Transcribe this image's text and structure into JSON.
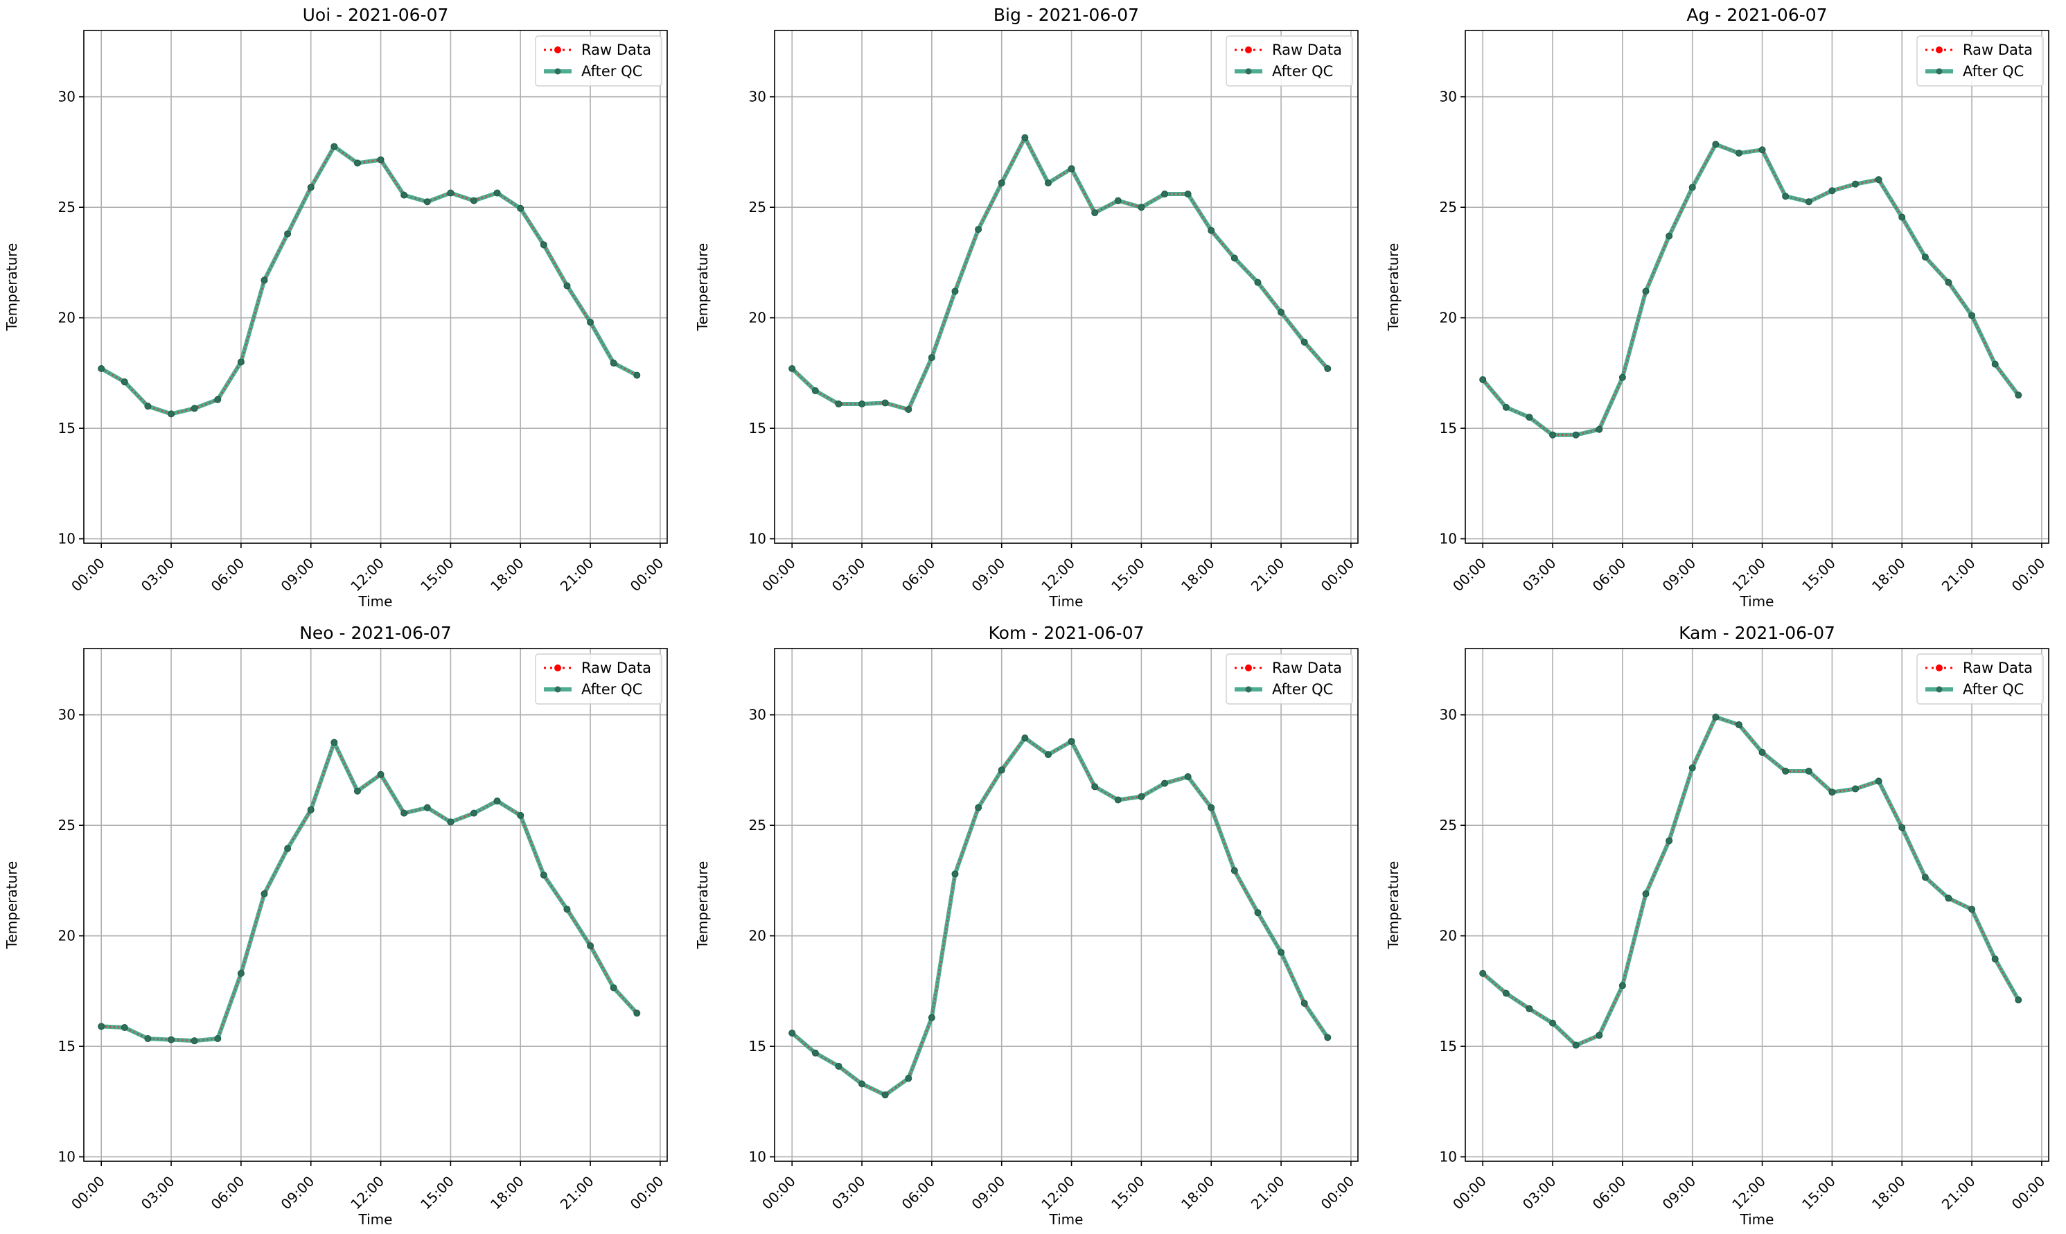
{
  "chart_data": [
    {
      "type": "line",
      "title": "Uoi - 2021-06-07",
      "xlabel": "Time",
      "ylabel": "Temperature",
      "ylim": [
        9.8,
        33.0
      ],
      "yticks": [
        10,
        15,
        20,
        25,
        30
      ],
      "xticks": [
        "00:00",
        "03:00",
        "06:00",
        "09:00",
        "12:00",
        "15:00",
        "18:00",
        "21:00",
        "00:00"
      ],
      "grid": true,
      "legend": "top-right",
      "x": [
        "00:00",
        "01:00",
        "02:00",
        "03:00",
        "04:00",
        "05:00",
        "06:00",
        "07:00",
        "08:00",
        "09:00",
        "10:00",
        "11:00",
        "12:00",
        "13:00",
        "14:00",
        "15:00",
        "16:00",
        "17:00",
        "18:00",
        "19:00",
        "20:00",
        "21:00",
        "22:00",
        "23:00"
      ],
      "series": [
        {
          "name": "Raw Data",
          "color": "#ff0000",
          "values": [
            17.7,
            17.1,
            16.0,
            15.65,
            15.9,
            16.3,
            18.0,
            21.7,
            23.8,
            25.9,
            27.75,
            27.0,
            27.15,
            25.55,
            25.25,
            25.65,
            25.3,
            25.65,
            24.95,
            23.3,
            21.45,
            19.8,
            17.95,
            17.4
          ]
        },
        {
          "name": "After QC",
          "color": "#2f9e7e",
          "values": [
            17.7,
            17.1,
            16.0,
            15.65,
            15.9,
            16.3,
            18.0,
            21.7,
            23.8,
            25.9,
            27.75,
            27.0,
            27.15,
            25.55,
            25.25,
            25.65,
            25.3,
            25.65,
            24.95,
            23.3,
            21.45,
            19.8,
            17.95,
            17.4
          ]
        }
      ]
    },
    {
      "type": "line",
      "title": "Big - 2021-06-07",
      "xlabel": "Time",
      "ylabel": "Temperature",
      "ylim": [
        9.8,
        33.0
      ],
      "yticks": [
        10,
        15,
        20,
        25,
        30
      ],
      "xticks": [
        "00:00",
        "03:00",
        "06:00",
        "09:00",
        "12:00",
        "15:00",
        "18:00",
        "21:00",
        "00:00"
      ],
      "grid": true,
      "legend": "top-right",
      "x": [
        "00:00",
        "01:00",
        "02:00",
        "03:00",
        "04:00",
        "05:00",
        "06:00",
        "07:00",
        "08:00",
        "09:00",
        "10:00",
        "11:00",
        "12:00",
        "13:00",
        "14:00",
        "15:00",
        "16:00",
        "17:00",
        "18:00",
        "19:00",
        "20:00",
        "21:00",
        "22:00",
        "23:00"
      ],
      "series": [
        {
          "name": "Raw Data",
          "color": "#ff0000",
          "values": [
            17.7,
            16.7,
            16.1,
            16.1,
            16.15,
            15.85,
            18.2,
            21.2,
            24.0,
            26.1,
            28.15,
            26.1,
            26.75,
            24.75,
            25.3,
            25.0,
            25.6,
            25.6,
            23.95,
            22.7,
            21.6,
            20.25,
            18.9,
            17.7
          ]
        },
        {
          "name": "After QC",
          "color": "#2f9e7e",
          "values": [
            17.7,
            16.7,
            16.1,
            16.1,
            16.15,
            15.85,
            18.2,
            21.2,
            24.0,
            26.1,
            28.15,
            26.1,
            26.75,
            24.75,
            25.3,
            25.0,
            25.6,
            25.6,
            23.95,
            22.7,
            21.6,
            20.25,
            18.9,
            17.7
          ]
        }
      ]
    },
    {
      "type": "line",
      "title": "Ag - 2021-06-07",
      "xlabel": "Time",
      "ylabel": "Temperature",
      "ylim": [
        9.8,
        33.0
      ],
      "yticks": [
        10,
        15,
        20,
        25,
        30
      ],
      "xticks": [
        "00:00",
        "03:00",
        "06:00",
        "09:00",
        "12:00",
        "15:00",
        "18:00",
        "21:00",
        "00:00"
      ],
      "grid": true,
      "legend": "top-right",
      "x": [
        "00:00",
        "01:00",
        "02:00",
        "03:00",
        "04:00",
        "05:00",
        "06:00",
        "07:00",
        "08:00",
        "09:00",
        "10:00",
        "11:00",
        "12:00",
        "13:00",
        "14:00",
        "15:00",
        "16:00",
        "17:00",
        "18:00",
        "19:00",
        "20:00",
        "21:00",
        "22:00",
        "23:00"
      ],
      "series": [
        {
          "name": "Raw Data",
          "color": "#ff0000",
          "values": [
            17.2,
            15.95,
            15.5,
            14.7,
            14.7,
            14.95,
            17.3,
            21.2,
            23.7,
            25.9,
            27.85,
            27.45,
            27.6,
            25.5,
            25.25,
            25.75,
            26.05,
            26.25,
            24.55,
            22.75,
            21.6,
            20.1,
            17.9,
            16.5
          ]
        },
        {
          "name": "After QC",
          "color": "#2f9e7e",
          "values": [
            17.2,
            15.95,
            15.5,
            14.7,
            14.7,
            14.95,
            17.3,
            21.2,
            23.7,
            25.9,
            27.85,
            27.45,
            27.6,
            25.5,
            25.25,
            25.75,
            26.05,
            26.25,
            24.55,
            22.75,
            21.6,
            20.1,
            17.9,
            16.5
          ]
        }
      ]
    },
    {
      "type": "line",
      "title": "Neo - 2021-06-07",
      "xlabel": "Time",
      "ylabel": "Temperature",
      "ylim": [
        9.8,
        33.0
      ],
      "yticks": [
        10,
        15,
        20,
        25,
        30
      ],
      "xticks": [
        "00:00",
        "03:00",
        "06:00",
        "09:00",
        "12:00",
        "15:00",
        "18:00",
        "21:00",
        "00:00"
      ],
      "grid": true,
      "legend": "top-right",
      "x": [
        "00:00",
        "01:00",
        "02:00",
        "03:00",
        "04:00",
        "05:00",
        "06:00",
        "07:00",
        "08:00",
        "09:00",
        "10:00",
        "11:00",
        "12:00",
        "13:00",
        "14:00",
        "15:00",
        "16:00",
        "17:00",
        "18:00",
        "19:00",
        "20:00",
        "21:00",
        "22:00",
        "23:00"
      ],
      "series": [
        {
          "name": "Raw Data",
          "color": "#ff0000",
          "values": [
            15.9,
            15.85,
            15.35,
            15.3,
            15.25,
            15.35,
            18.3,
            21.9,
            23.95,
            25.7,
            28.75,
            26.55,
            27.3,
            25.55,
            25.8,
            25.15,
            25.55,
            26.1,
            25.45,
            22.75,
            21.2,
            19.55,
            17.65,
            16.5
          ]
        },
        {
          "name": "After QC",
          "color": "#2f9e7e",
          "values": [
            15.9,
            15.85,
            15.35,
            15.3,
            15.25,
            15.35,
            18.3,
            21.9,
            23.95,
            25.7,
            28.75,
            26.55,
            27.3,
            25.55,
            25.8,
            25.15,
            25.55,
            26.1,
            25.45,
            22.75,
            21.2,
            19.55,
            17.65,
            16.5
          ]
        }
      ]
    },
    {
      "type": "line",
      "title": "Kom - 2021-06-07",
      "xlabel": "Time",
      "ylabel": "Temperature",
      "ylim": [
        9.8,
        33.0
      ],
      "yticks": [
        10,
        15,
        20,
        25,
        30
      ],
      "xticks": [
        "00:00",
        "03:00",
        "06:00",
        "09:00",
        "12:00",
        "15:00",
        "18:00",
        "21:00",
        "00:00"
      ],
      "grid": true,
      "legend": "top-right",
      "x": [
        "00:00",
        "01:00",
        "02:00",
        "03:00",
        "04:00",
        "05:00",
        "06:00",
        "07:00",
        "08:00",
        "09:00",
        "10:00",
        "11:00",
        "12:00",
        "13:00",
        "14:00",
        "15:00",
        "16:00",
        "17:00",
        "18:00",
        "19:00",
        "20:00",
        "21:00",
        "22:00",
        "23:00"
      ],
      "series": [
        {
          "name": "Raw Data",
          "color": "#ff0000",
          "values": [
            15.6,
            14.7,
            14.1,
            13.3,
            12.8,
            13.55,
            16.3,
            22.8,
            25.8,
            27.5,
            28.95,
            28.2,
            28.8,
            26.75,
            26.15,
            26.3,
            26.9,
            27.2,
            25.8,
            22.95,
            21.05,
            19.25,
            16.95,
            15.4
          ]
        },
        {
          "name": "After QC",
          "color": "#2f9e7e",
          "values": [
            15.6,
            14.7,
            14.1,
            13.3,
            12.8,
            13.55,
            16.3,
            22.8,
            25.8,
            27.5,
            28.95,
            28.2,
            28.8,
            26.75,
            26.15,
            26.3,
            26.9,
            27.2,
            25.8,
            22.95,
            21.05,
            19.25,
            16.95,
            15.4
          ]
        }
      ]
    },
    {
      "type": "line",
      "title": "Kam - 2021-06-07",
      "xlabel": "Time",
      "ylabel": "Temperature",
      "ylim": [
        9.8,
        33.0
      ],
      "yticks": [
        10,
        15,
        20,
        25,
        30
      ],
      "xticks": [
        "00:00",
        "03:00",
        "06:00",
        "09:00",
        "12:00",
        "15:00",
        "18:00",
        "21:00",
        "00:00"
      ],
      "grid": true,
      "legend": "top-right",
      "x": [
        "00:00",
        "01:00",
        "02:00",
        "03:00",
        "04:00",
        "05:00",
        "06:00",
        "07:00",
        "08:00",
        "09:00",
        "10:00",
        "11:00",
        "12:00",
        "13:00",
        "14:00",
        "15:00",
        "16:00",
        "17:00",
        "18:00",
        "19:00",
        "20:00",
        "21:00",
        "22:00",
        "23:00"
      ],
      "series": [
        {
          "name": "Raw Data",
          "color": "#ff0000",
          "values": [
            18.3,
            17.4,
            16.7,
            16.05,
            15.05,
            15.5,
            17.75,
            21.9,
            24.3,
            27.6,
            29.9,
            29.55,
            28.3,
            27.45,
            27.45,
            26.5,
            26.65,
            27.0,
            24.9,
            22.65,
            21.7,
            21.2,
            18.95,
            17.1
          ]
        },
        {
          "name": "After QC",
          "color": "#2f9e7e",
          "values": [
            18.3,
            17.4,
            16.7,
            16.05,
            15.05,
            15.5,
            17.75,
            21.9,
            24.3,
            27.6,
            29.9,
            29.55,
            28.3,
            27.45,
            27.45,
            26.5,
            26.65,
            27.0,
            24.9,
            22.65,
            21.7,
            21.2,
            18.95,
            17.1
          ]
        }
      ]
    }
  ]
}
